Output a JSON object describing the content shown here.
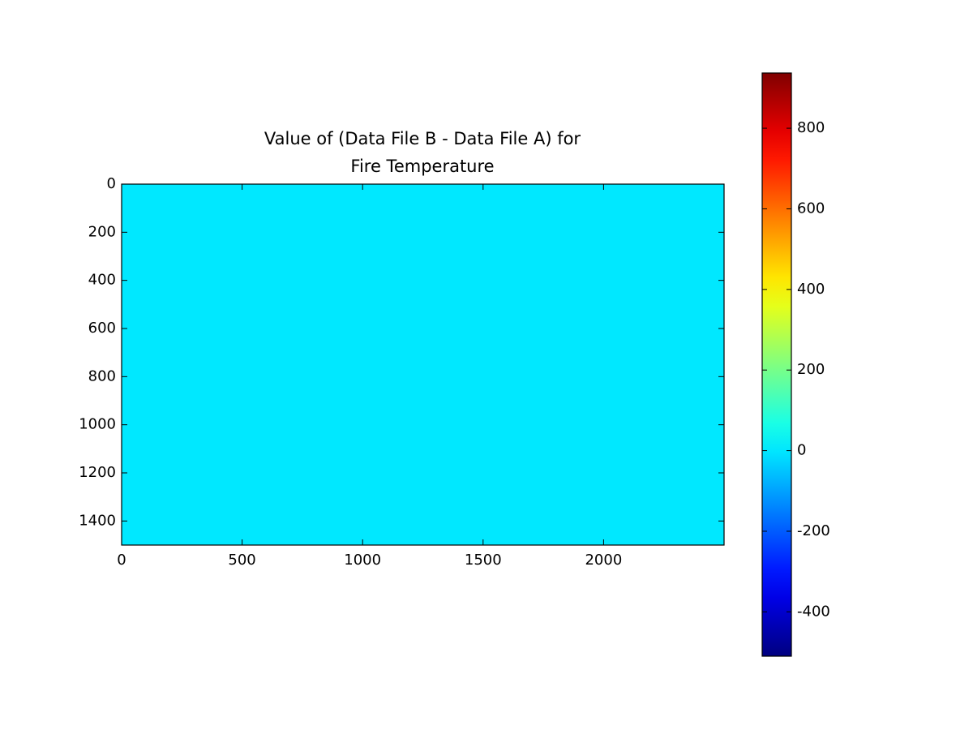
{
  "chart_data": {
    "type": "image",
    "title": [
      "Value of (Data File B - Data File A) for",
      "Fire Temperature"
    ],
    "z": [
      [
        0
      ]
    ],
    "cmap": "jet",
    "xlim": [
      0,
      2500
    ],
    "ylim": [
      1500,
      0
    ],
    "xticks": [
      0,
      500,
      1000,
      1500,
      2000
    ],
    "yticks": [
      0,
      200,
      400,
      600,
      800,
      1000,
      1200,
      1400
    ],
    "colorbar": {
      "clim": [
        -510,
        937
      ],
      "ticks": [
        -400,
        -200,
        0,
        200,
        400,
        600,
        800
      ]
    }
  }
}
